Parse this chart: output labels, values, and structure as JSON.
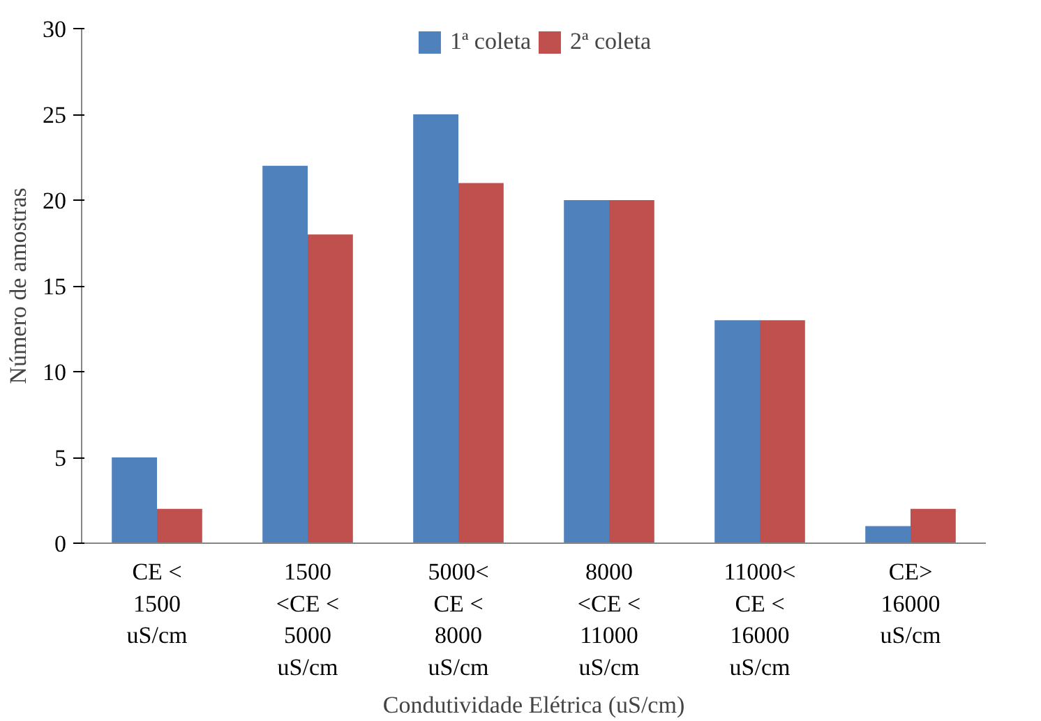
{
  "chart_data": {
    "type": "bar",
    "xlabel": "Condutividade Elétrica (uS/cm)",
    "ylabel": "Número de amostras",
    "categories": [
      "CE <\n1500\nuS/cm",
      "1500\n<CE <\n5000\nuS/cm",
      "5000<\nCE <\n8000\nuS/cm",
      "8000\n<CE <\n11000\nuS/cm",
      "11000<\nCE <\n16000\nuS/cm",
      "CE>\n16000\nuS/cm"
    ],
    "series": [
      {
        "name": "1ª coleta",
        "color": "#4f81bd",
        "values": [
          5,
          22,
          25,
          20,
          13,
          1
        ]
      },
      {
        "name": "2ª coleta",
        "color": "#c0504d",
        "values": [
          2,
          18,
          21,
          20,
          13,
          2
        ]
      }
    ],
    "ylim": [
      0,
      30
    ],
    "yticks": [
      0,
      5,
      10,
      15,
      20,
      25,
      30
    ],
    "legend": "top"
  }
}
